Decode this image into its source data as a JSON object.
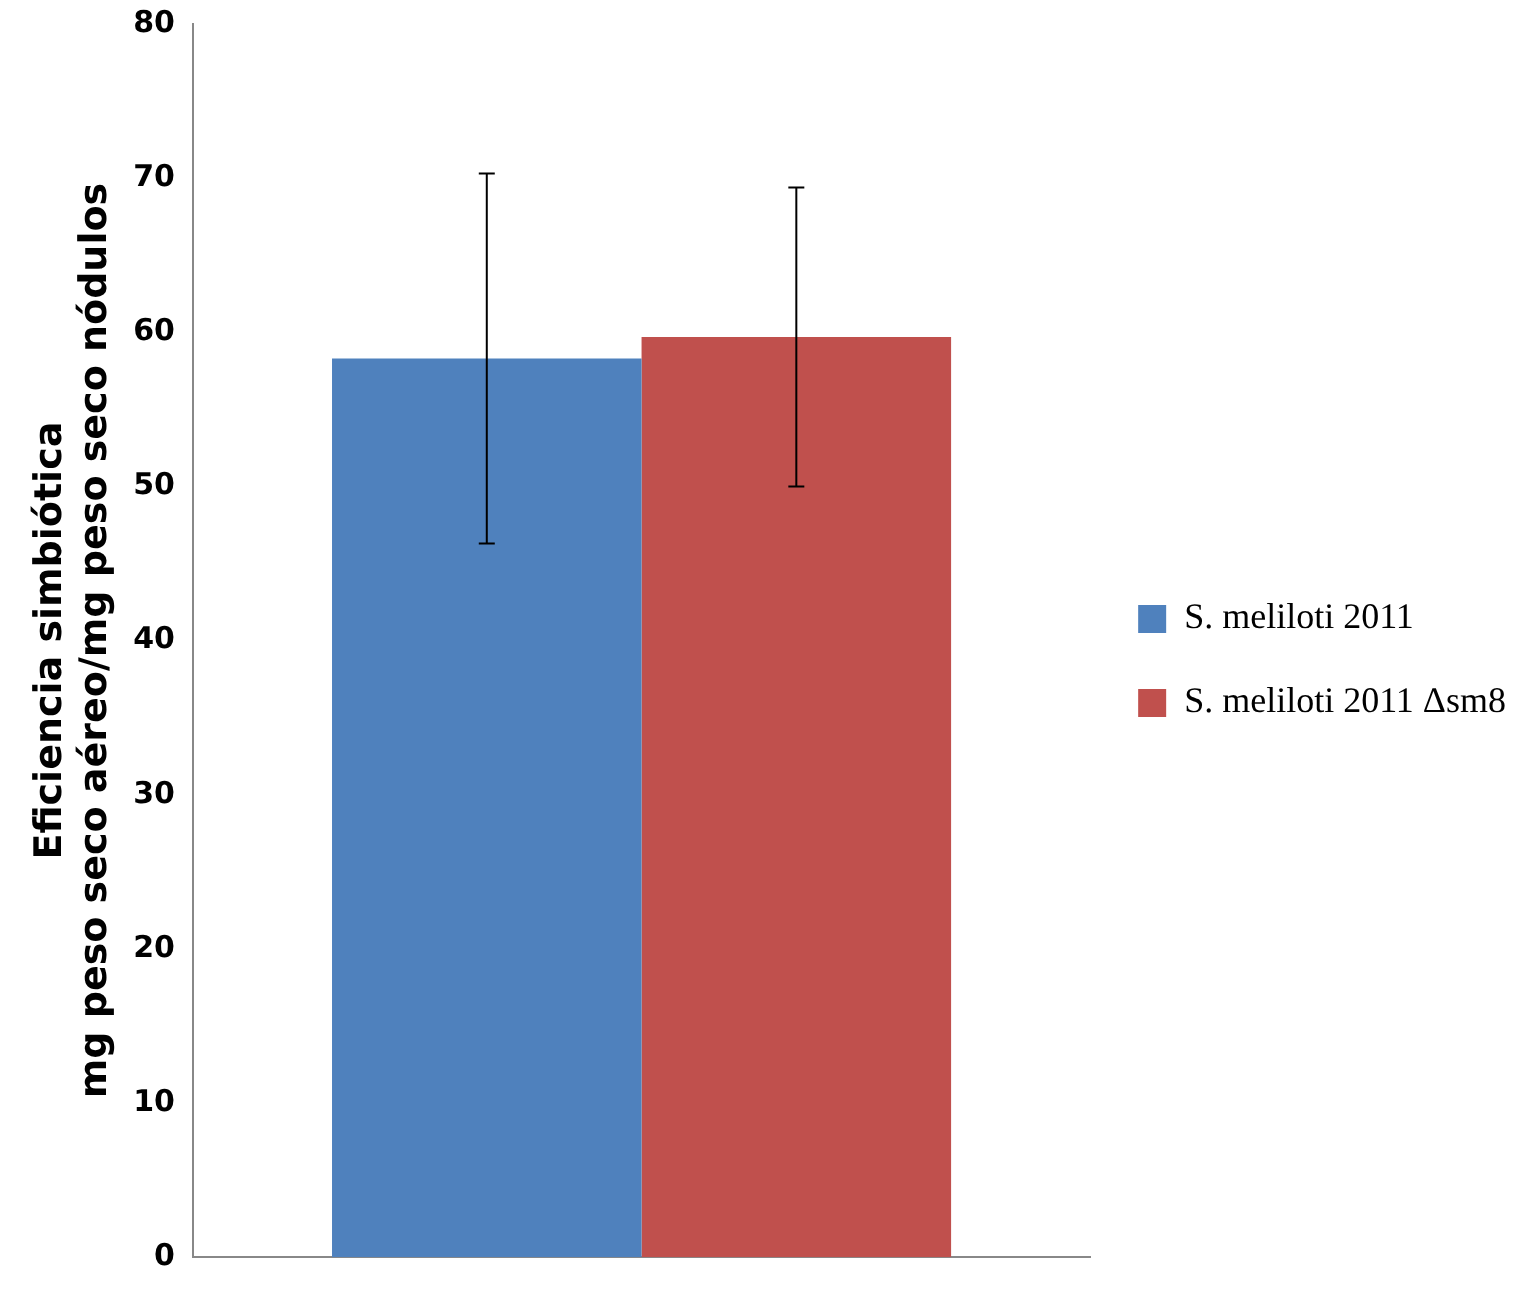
{
  "chart_data": {
    "type": "bar",
    "ylabel": "Eficiencia simbiótica\nmg peso seco aéreo/mg peso seco nódulos",
    "categories": [
      null
    ],
    "series": [
      {
        "name": "S. meliloti 2011",
        "color": "#4f81bd",
        "values": [
          58.3
        ],
        "errors": [
          12
        ]
      },
      {
        "name": "S. meliloti 2011 Δsm8",
        "color": "#c0504d",
        "values": [
          59.7
        ],
        "errors": [
          9.7
        ]
      }
    ],
    "ylim": [
      0,
      80
    ],
    "yticks": [
      0,
      10,
      20,
      30,
      40,
      50,
      60,
      70,
      80
    ],
    "grid": false,
    "legend": "right"
  }
}
